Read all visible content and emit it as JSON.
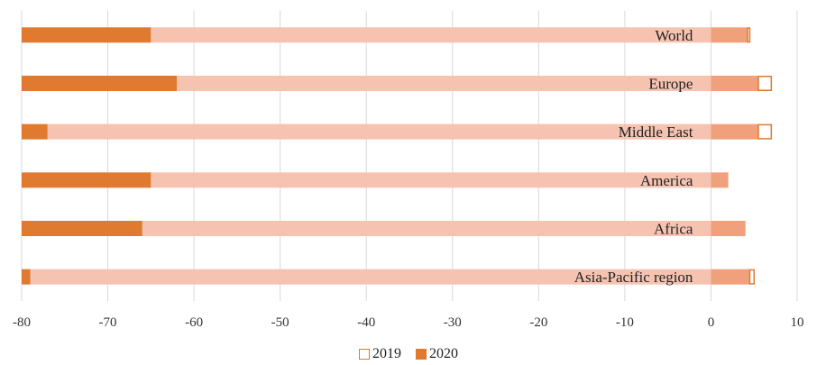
{
  "chart_data": {
    "type": "bar",
    "orientation": "horizontal",
    "categories": [
      "World",
      "Europe",
      "Middle East",
      "America",
      "Africa",
      "Asia-Pacific region"
    ],
    "series": [
      {
        "name": "2019",
        "values": [
          4.5,
          7,
          7,
          2,
          4,
          5
        ],
        "color": "#ffffff",
        "stroke": "#E07A30",
        "positive_fill": "#ffffff"
      },
      {
        "name": "2020",
        "values": [
          -65,
          -62,
          -77,
          -65,
          -66,
          -79
        ],
        "color": "#E07A30",
        "positive_fill": "#F0A07A"
      }
    ],
    "overlap_fill": "#F6C3B1",
    "xlim": [
      -80,
      10
    ],
    "xticks": [
      -80,
      -70,
      -60,
      -50,
      -40,
      -30,
      -20,
      -10,
      0,
      10
    ],
    "grid": true,
    "legend": "bottom",
    "title": "",
    "xlabel": "",
    "ylabel": ""
  },
  "legend": {
    "items": [
      "2019",
      "2020"
    ]
  }
}
